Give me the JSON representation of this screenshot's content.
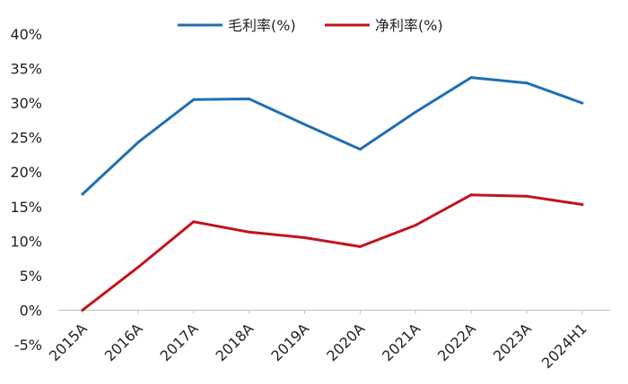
{
  "chart_data": {
    "type": "line",
    "categories": [
      "2015A",
      "2016A",
      "2017A",
      "2018A",
      "2019A",
      "2020A",
      "2021A",
      "2022A",
      "2023A",
      "2024H1"
    ],
    "series": [
      {
        "name": "毛利率(%)",
        "color": "#1f6fb2",
        "values": [
          16.8,
          24.3,
          30.5,
          30.6,
          26.9,
          23.3,
          28.7,
          33.7,
          32.9,
          30.0
        ]
      },
      {
        "name": "净利率(%)",
        "color": "#c0141c",
        "values": [
          0.0,
          6.2,
          12.8,
          11.3,
          10.5,
          9.2,
          12.3,
          16.7,
          16.5,
          15.3
        ]
      }
    ],
    "yticks": [
      "40%",
      "35%",
      "30%",
      "25%",
      "20%",
      "15%",
      "10%",
      "5%",
      "0%",
      "-5%"
    ],
    "ylim": [
      -5,
      40
    ],
    "grid": false,
    "legend_position": "top"
  }
}
